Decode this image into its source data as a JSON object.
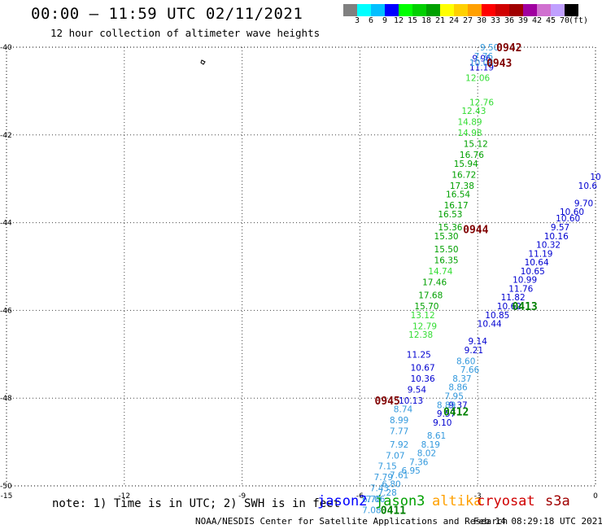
{
  "header": {
    "title": "00:00 – 11:59 UTC 02/11/2021",
    "subtitle": "12 hour collection of altimeter wave heights"
  },
  "colorbar": {
    "colors": [
      "#808080",
      "#00ffff",
      "#00bfff",
      "#0000ff",
      "#00ff00",
      "#00d000",
      "#00a000",
      "#ffff00",
      "#ffd000",
      "#ffa000",
      "#ff0000",
      "#d00000",
      "#a00000",
      "#a000a0",
      "#d070d0",
      "#c0a0ff",
      "#000000"
    ],
    "labels": [
      "3",
      "6",
      "9",
      "12",
      "15",
      "18",
      "21",
      "24",
      "27",
      "30",
      "33",
      "36",
      "39",
      "42",
      "45",
      "70",
      "(ft)"
    ]
  },
  "chart_data": {
    "type": "scatter",
    "xlim": [
      -15,
      0
    ],
    "ylim": [
      -50,
      -40
    ],
    "x_ticks": [
      "-15",
      "-12",
      "-9",
      "-6",
      "-3",
      "0"
    ],
    "y_ticks": [
      "-40",
      "-42",
      "-44",
      "-46",
      "-48",
      "-50"
    ],
    "grid": true,
    "series": [
      {
        "name": "jason2",
        "color": "#0000d0",
        "points": [
          {
            "x": -2.9,
            "y": -40.25,
            "v": "9.96"
          },
          {
            "x": -2.9,
            "y": -40.45,
            "v": "11.19"
          },
          {
            "x": -4.5,
            "y": -47.0,
            "v": "11.25"
          },
          {
            "x": -4.4,
            "y": -47.3,
            "v": "10.67"
          },
          {
            "x": -4.4,
            "y": -47.55,
            "v": "10.36"
          },
          {
            "x": -4.55,
            "y": -47.8,
            "v": "9.54"
          },
          {
            "x": -4.7,
            "y": -48.05,
            "v": "10.13"
          },
          {
            "x": 0.0,
            "y": -42.95,
            "v": "10"
          },
          {
            "x": -0.2,
            "y": -43.15,
            "v": "10.6"
          },
          {
            "x": -0.3,
            "y": -43.55,
            "v": "9.70"
          },
          {
            "x": -0.6,
            "y": -43.75,
            "v": "10.60"
          },
          {
            "x": -0.7,
            "y": -43.9,
            "v": "10.60"
          },
          {
            "x": -0.9,
            "y": -44.1,
            "v": "9.57"
          },
          {
            "x": -1.0,
            "y": -44.3,
            "v": "10.16"
          },
          {
            "x": -1.2,
            "y": -44.5,
            "v": "10.32"
          },
          {
            "x": -1.4,
            "y": -44.7,
            "v": "11.19"
          },
          {
            "x": -1.5,
            "y": -44.9,
            "v": "10.64"
          },
          {
            "x": -1.6,
            "y": -45.1,
            "v": "10.65"
          },
          {
            "x": -1.8,
            "y": -45.3,
            "v": "10.99"
          },
          {
            "x": -1.9,
            "y": -45.5,
            "v": "11.76"
          },
          {
            "x": -2.1,
            "y": -45.7,
            "v": "11.82"
          },
          {
            "x": -2.2,
            "y": -45.9,
            "v": "10.62"
          },
          {
            "x": -2.5,
            "y": -46.1,
            "v": "10.85"
          },
          {
            "x": -2.7,
            "y": -46.3,
            "v": "10.44"
          },
          {
            "x": -3.0,
            "y": -46.7,
            "v": "9.14"
          },
          {
            "x": -3.1,
            "y": -46.9,
            "v": "9.21"
          },
          {
            "x": -3.5,
            "y": -48.15,
            "v": "9.37"
          },
          {
            "x": -3.8,
            "y": -48.35,
            "v": "9.57"
          },
          {
            "x": -3.9,
            "y": -48.55,
            "v": "9.10"
          }
        ]
      },
      {
        "name": "jason3",
        "color": "#00a000",
        "points": [
          {
            "x": -3.05,
            "y": -42.2,
            "v": "15.12"
          },
          {
            "x": -3.15,
            "y": -42.45,
            "v": "16.76"
          },
          {
            "x": -3.3,
            "y": -42.65,
            "v": "15.94"
          },
          {
            "x": -3.35,
            "y": -42.9,
            "v": "16.72"
          },
          {
            "x": -3.4,
            "y": -43.15,
            "v": "17.38"
          },
          {
            "x": -3.5,
            "y": -43.35,
            "v": "16.54"
          },
          {
            "x": -3.55,
            "y": -43.6,
            "v": "16.17"
          },
          {
            "x": -3.7,
            "y": -43.8,
            "v": "16.53"
          },
          {
            "x": -3.7,
            "y": -44.1,
            "v": "15.36"
          },
          {
            "x": -3.8,
            "y": -44.3,
            "v": "15.30"
          },
          {
            "x": -3.8,
            "y": -44.6,
            "v": "15.50"
          },
          {
            "x": -3.8,
            "y": -44.85,
            "v": "16.35"
          },
          {
            "x": -4.1,
            "y": -45.35,
            "v": "17.46"
          },
          {
            "x": -4.2,
            "y": -45.65,
            "v": "17.68"
          },
          {
            "x": -4.3,
            "y": -45.9,
            "v": "15.70"
          }
        ]
      },
      {
        "name": "light-green",
        "color": "#33dd33",
        "points": [
          {
            "x": -3.0,
            "y": -40.7,
            "v": "12.06"
          },
          {
            "x": -2.9,
            "y": -41.25,
            "v": "12.76"
          },
          {
            "x": -3.1,
            "y": -41.45,
            "v": "12.43"
          },
          {
            "x": -3.2,
            "y": -41.7,
            "v": "14.89"
          },
          {
            "x": -3.2,
            "y": -41.95,
            "v": "14.98"
          },
          {
            "x": -3.95,
            "y": -45.1,
            "v": "14.74"
          },
          {
            "x": -4.4,
            "y": -46.1,
            "v": "13.12"
          },
          {
            "x": -4.35,
            "y": -46.35,
            "v": "12.79"
          },
          {
            "x": -4.45,
            "y": -46.55,
            "v": "12.38"
          }
        ]
      },
      {
        "name": "light-blue",
        "color": "#3399dd",
        "points": [
          {
            "x": -2.7,
            "y": -40.0,
            "v": "9.50"
          },
          {
            "x": -2.85,
            "y": -40.2,
            "v": "7.76"
          },
          {
            "x": -2.9,
            "y": -40.35,
            "v": "10.04"
          },
          {
            "x": -3.3,
            "y": -47.15,
            "v": "8.60"
          },
          {
            "x": -3.2,
            "y": -47.35,
            "v": "7.66"
          },
          {
            "x": -3.4,
            "y": -47.55,
            "v": "8.37"
          },
          {
            "x": -3.5,
            "y": -47.75,
            "v": "8.86"
          },
          {
            "x": -3.6,
            "y": -47.95,
            "v": "7.95"
          },
          {
            "x": -3.8,
            "y": -48.15,
            "v": "8.89"
          },
          {
            "x": -4.9,
            "y": -48.25,
            "v": "8.74"
          },
          {
            "x": -5.0,
            "y": -48.5,
            "v": "8.99"
          },
          {
            "x": -5.0,
            "y": -48.75,
            "v": "7.77"
          },
          {
            "x": -4.05,
            "y": -48.85,
            "v": "8.61"
          },
          {
            "x": -4.2,
            "y": -49.05,
            "v": "8.19"
          },
          {
            "x": -4.3,
            "y": -49.25,
            "v": "8.02"
          },
          {
            "x": -5.0,
            "y": -49.05,
            "v": "7.92"
          },
          {
            "x": -5.1,
            "y": -49.3,
            "v": "7.07"
          },
          {
            "x": -4.5,
            "y": -49.45,
            "v": "7.36"
          },
          {
            "x": -4.7,
            "y": -49.65,
            "v": "6.95"
          },
          {
            "x": -5.3,
            "y": -49.55,
            "v": "7.15"
          },
          {
            "x": -5.4,
            "y": -49.8,
            "v": "7.79"
          },
          {
            "x": -5.0,
            "y": -49.75,
            "v": "7.61"
          },
          {
            "x": -5.2,
            "y": -49.95,
            "v": "6.80"
          },
          {
            "x": -5.5,
            "y": -50.05,
            "v": "7.43"
          },
          {
            "x": -5.3,
            "y": -50.15,
            "v": "7.28"
          },
          {
            "x": -5.7,
            "y": -50.3,
            "v": "6.70"
          },
          {
            "x": -5.6,
            "y": -50.3,
            "v": "7.06"
          },
          {
            "x": -5.7,
            "y": -50.55,
            "v": "7.08"
          }
        ]
      }
    ],
    "annotations": [
      {
        "x": -2.2,
        "y": -40.0,
        "text": "0942",
        "color": "#800000"
      },
      {
        "x": -2.45,
        "y": -40.35,
        "text": "0943",
        "color": "#800000"
      },
      {
        "x": -3.05,
        "y": -44.15,
        "text": "0944",
        "color": "#800000"
      },
      {
        "x": -5.3,
        "y": -48.05,
        "text": "0945",
        "color": "#800000"
      },
      {
        "x": -1.8,
        "y": -45.9,
        "text": "0413",
        "color": "#008000"
      },
      {
        "x": -3.55,
        "y": -48.3,
        "text": "0412",
        "color": "#008000"
      },
      {
        "x": -5.15,
        "y": -50.55,
        "text": "0411",
        "color": "#008000"
      }
    ]
  },
  "note": "note: 1) Time is in UTC; 2) SWH is in feet",
  "satellites": [
    {
      "name": "jason2",
      "color": "#0000ff"
    },
    {
      "name": "jason3",
      "color": "#00a000"
    },
    {
      "name": "altika",
      "color": "#ffa000"
    },
    {
      "name": "cryosat",
      "color": "#d00000"
    },
    {
      "name": "s3a",
      "color": "#a00000"
    }
  ],
  "footer": "NOAA/NESDIS Center for Satellite Applications and Research",
  "credit": "Feb 14 08:29:18 UTC 2021"
}
